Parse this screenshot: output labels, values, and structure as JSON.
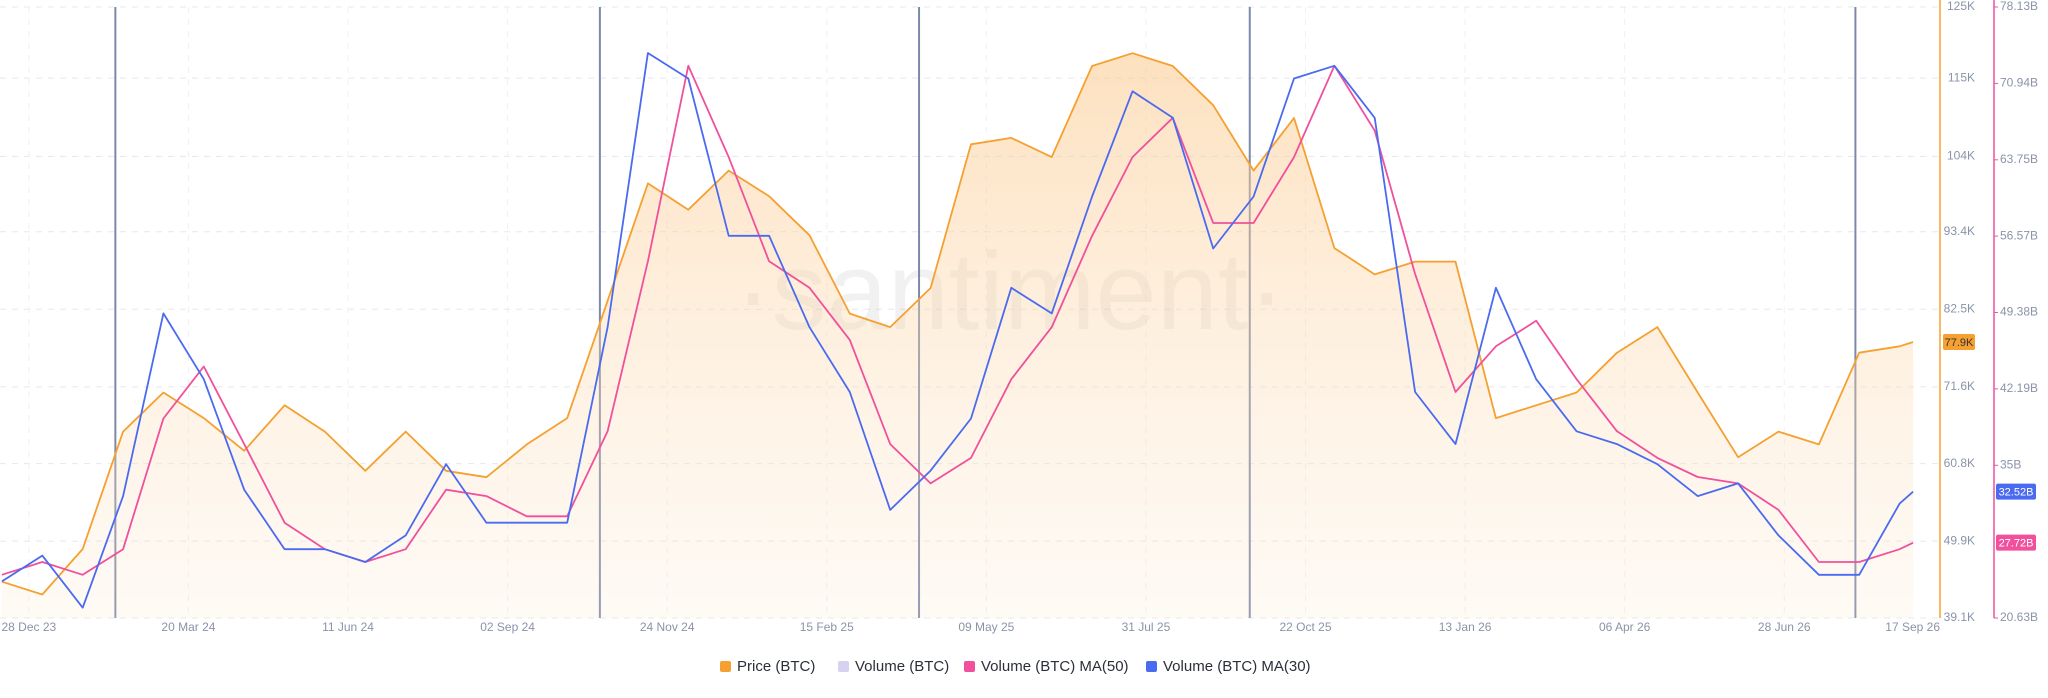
{
  "chart_data": {
    "type": "line",
    "watermark": "·santiment·",
    "x": [
      "14 Dec 23",
      "04 Jan 24",
      "25 Jan 24",
      "15 Feb 24",
      "07 Mar 24",
      "28 Mar 24",
      "18 Apr 24",
      "09 May 24",
      "30 May 24",
      "20 Jun 24",
      "11 Jul 24",
      "01 Aug 24",
      "22 Aug 24",
      "12 Sep 24",
      "03 Oct 24",
      "24 Oct 24",
      "14 Nov 24",
      "05 Dec 24",
      "26 Dec 24",
      "16 Jan 25",
      "06 Feb 25",
      "27 Feb 25",
      "20 Mar 25",
      "10 Apr 25",
      "01 May 25",
      "22 May 25",
      "12 Jun 25",
      "03 Jul 25",
      "24 Jul 25",
      "14 Aug 25",
      "04 Sep 25",
      "25 Sep 25",
      "16 Oct 25",
      "06 Nov 25",
      "27 Nov 25",
      "18 Dec 25",
      "08 Jan 26",
      "29 Jan 26",
      "19 Feb 26",
      "12 Mar 26",
      "02 Apr 26",
      "23 Apr 26",
      "14 May 26",
      "04 Jun 26",
      "25 Jun 26",
      "16 Jul 26",
      "06 Aug 26",
      "27 Aug 26",
      "03 Sep 26"
    ],
    "xlim": [
      "13 Dec 23",
      "17 Sep 26"
    ],
    "xticks": [
      "28 Dec 23",
      "20 Mar 24",
      "11 Jun 24",
      "02 Sep 24",
      "24 Nov 24",
      "15 Feb 25",
      "09 May 25",
      "31 Jul 25",
      "22 Oct 25",
      "13 Jan 26",
      "06 Apr 26",
      "28 Jun 26",
      "17 Sep 26"
    ],
    "ylim": [
      39100,
      125000
    ],
    "yticks": [
      {
        "value": 39100,
        "label": "39.1K"
      },
      {
        "value": 49900,
        "label": "49.9K"
      },
      {
        "value": 60800,
        "label": "60.8K"
      },
      {
        "value": 71600,
        "label": "71.6K"
      },
      {
        "value": 82500,
        "label": "82.5K"
      },
      {
        "value": 93400,
        "label": "93.4K"
      },
      {
        "value": 104000,
        "label": "104K"
      },
      {
        "value": 115000,
        "label": "115K"
      },
      {
        "value": 125000,
        "label": "125K"
      }
    ],
    "y2lim": [
      20.63,
      78.13
    ],
    "y2ticks": [
      {
        "value": 20.63,
        "label": "20.63B"
      },
      {
        "value": 35,
        "label": "35B"
      },
      {
        "value": 42.19,
        "label": "42.19B"
      },
      {
        "value": 49.38,
        "label": "49.38B"
      },
      {
        "value": 56.57,
        "label": "56.57B"
      },
      {
        "value": 63.75,
        "label": "63.75B"
      },
      {
        "value": 70.94,
        "label": "70.94B"
      },
      {
        "value": 78.13,
        "label": "78.13B"
      }
    ],
    "grid": true,
    "event_lines": [
      "11 Feb 24",
      "20 Oct 24",
      "04 Apr 25",
      "23 Sep 25",
      "04 Aug 26"
    ],
    "series": [
      {
        "name": "Price (BTC)",
        "color": "#f5a030",
        "area": true,
        "end_label": "77.9K",
        "values": [
          44200,
          42400,
          48800,
          65300,
          70800,
          67200,
          62600,
          69000,
          65300,
          59800,
          65300,
          59800,
          58900,
          63500,
          67200,
          83700,
          100200,
          96500,
          102000,
          98400,
          92900,
          81900,
          80000,
          85500,
          105700,
          106600,
          103900,
          116700,
          118500,
          116700,
          111200,
          102000,
          109400,
          91100,
          87400,
          89200,
          89200,
          67200,
          69000,
          70800,
          76400,
          80000,
          70800,
          61700,
          65300,
          63500,
          76400,
          77300,
          77900
        ]
      },
      {
        "name": "Volume (BTC)",
        "color": "#d6d2f0",
        "axis": "y2",
        "values": [
          null,
          null,
          null,
          null,
          null,
          null,
          null,
          null,
          null,
          null,
          null,
          null,
          null,
          null,
          null,
          null,
          null,
          null,
          null,
          null,
          null,
          null,
          null,
          null,
          null,
          null,
          null,
          null,
          null,
          null,
          null,
          null,
          null,
          null,
          null,
          null,
          null,
          null,
          null,
          null,
          null,
          null,
          null,
          null,
          null,
          null,
          null,
          null,
          null
        ]
      },
      {
        "name": "Volume (BTC) MA(50)",
        "color": "#f0509c",
        "axis": "y2",
        "end_label": "27.72B",
        "values": [
          24.7,
          25.9,
          24.7,
          27.1,
          39.4,
          44.3,
          37,
          29.6,
          27.1,
          25.9,
          27.1,
          32.7,
          32.1,
          30.2,
          30.2,
          38.2,
          54.2,
          72.6,
          64,
          54.2,
          51.7,
          46.8,
          37,
          33.3,
          35.7,
          43.1,
          48,
          56.6,
          64,
          67.7,
          57.8,
          57.8,
          64,
          72.6,
          66.5,
          53,
          41.9,
          46.2,
          48.6,
          43.1,
          38.2,
          35.7,
          33.9,
          33.3,
          30.8,
          25.9,
          25.9,
          27.1,
          27.72
        ]
      },
      {
        "name": "Volume (BTC) MA(30)",
        "color": "#4a6af0",
        "axis": "y2",
        "end_label": "32.52B",
        "values": [
          24.07,
          26.5,
          21.6,
          32.1,
          49.3,
          43.1,
          32.7,
          27.1,
          27.1,
          25.9,
          28.4,
          35.1,
          29.6,
          29.6,
          29.6,
          48,
          73.8,
          71.4,
          56.6,
          56.6,
          48,
          41.9,
          30.8,
          34.5,
          39.4,
          51.7,
          49.3,
          60.3,
          70.2,
          67.7,
          55.4,
          60.3,
          71.4,
          72.6,
          67.7,
          41.9,
          37,
          51.7,
          43.1,
          38.2,
          37,
          35.1,
          32.1,
          33.3,
          28.4,
          24.7,
          24.7,
          31.4,
          32.52
        ]
      }
    ]
  }
}
